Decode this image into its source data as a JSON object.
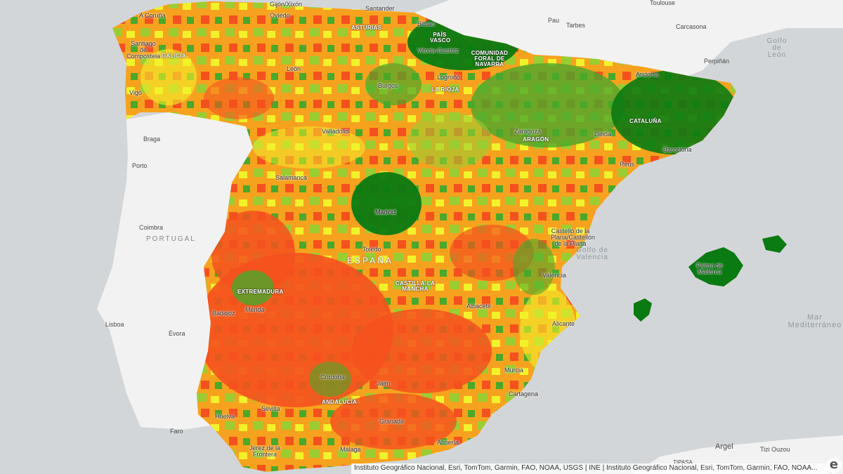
{
  "legend_colors": {
    "dark_green": "#0a7a12",
    "green": "#4aa82a",
    "light_green": "#9acd32",
    "yellow": "#f2f22a",
    "orange": "#f7a21e",
    "red": "#f4511e"
  },
  "base_colors": {
    "ocean": "#d3d6d8",
    "land": "#f2f2f2"
  },
  "cities": {
    "a_coruna": "A Coruña",
    "santiago": "Santiago de Compostela",
    "vigo": "Vigo",
    "braga": "Braga",
    "porto": "Porto",
    "coimbra": "Coimbra",
    "lisboa": "Lisboa",
    "evora": "Évora",
    "faro": "Faro",
    "gijon": "Gijón/Xixón",
    "oviedo": "Oviedo",
    "santander": "Santander",
    "bilbao": "Bilbao",
    "vitoria": "Vitoria-Gasteiz",
    "pau": "Pau",
    "tarbes": "Tarbes",
    "toulouse": "Toulouse",
    "carcasona": "Carcasona",
    "perpinan": "Perpiñán",
    "andorra": "Andorra",
    "leon": "León",
    "burgos": "Burgos",
    "logrono": "Logroño",
    "valladolid": "Valladolid",
    "zaragoza": "Zaragoza",
    "lleida": "Lleida",
    "barcelona": "Barcelona",
    "reus": "Reus",
    "salamanca": "Salamanca",
    "madrid": "Madrid",
    "toledo": "Toledo",
    "castellon": "Castelló de la Plana/Castellón de la Plana",
    "valencia": "Valencia",
    "palma": "Palma de Mallorca",
    "albacete": "Albacete",
    "alicante": "Alicante",
    "murcia": "Murcia",
    "cartagena": "Cartagena",
    "badajoz": "Badajoz",
    "merida": "Mérida",
    "cordoba": "Córdoba",
    "jaen": "Jaén",
    "sevilla": "Sevilla",
    "huelva": "Huelva",
    "granada": "Granada",
    "jerez": "Jerez de la Frontera",
    "malaga": "Málaga",
    "almeria": "Almería",
    "argel": "Argel",
    "tizi": "Tizi Ouzou",
    "tipasa": "TIPASA"
  },
  "regions": {
    "galicia": "GALICIA",
    "asturias": "ASTURIAS",
    "pais_vasco": "PAÍS VASCO",
    "navarra": "COMUNIDAD FORAL DE NAVARRA",
    "la_rioja": "LA RIOJA",
    "aragon": "ARAGÓN",
    "cataluna": "CATALUÑA",
    "extremadura": "EXTREMADURA",
    "castilla_mancha": "CASTILLA-LA MANCHA",
    "andalucia": "ANDALUCÍA"
  },
  "countries": {
    "portugal": "PORTUGAL",
    "espana": "ESPAÑA"
  },
  "seas": {
    "golfo_leon": "Golfo de León",
    "golfo_valencia": "Golfo de Valencia",
    "mar_med": "Mar Mediterráneo"
  },
  "attribution": "Instituto Geográfico Nacional, Esri, TomTom, Garmin, FAO, NOAA, USGS | INE | Instituto Geográfico Nacional, Esri, TomTom, Garmin, FAO, NOAA...",
  "esri_logo": "e"
}
